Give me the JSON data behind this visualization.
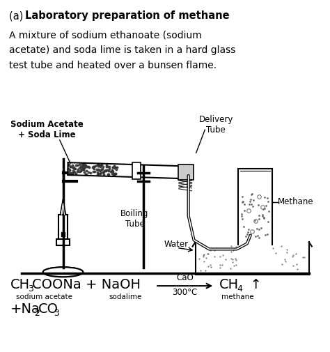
{
  "title_prefix": "(a) ",
  "title_bold": "Laboratory preparation of methane",
  "description_lines": [
    "A mixture of sodium ethanoate (sodium",
    "acetate) and soda lime is taken in a hard glass",
    "test tube and heated over a bunsen flame."
  ],
  "label_sodium_acetate": "Sodium Acetate\n+ Soda Lime",
  "label_delivery_tube": "Delivery\nTube",
  "label_boiling_tube": "Boiling\nTube",
  "label_water": "Water",
  "label_methane": "Methane",
  "bg_color": "#ffffff",
  "line_color": "#000000"
}
